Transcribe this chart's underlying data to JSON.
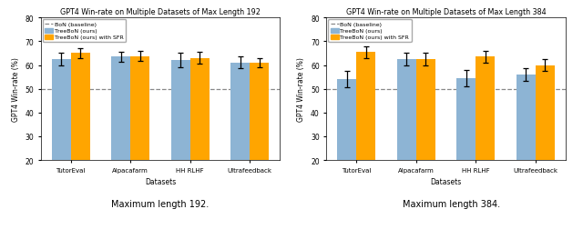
{
  "left_chart": {
    "title": "GPT4 Win-rate on Multiple Datasets of Max Length 192",
    "categories": [
      "TutorEval",
      "Alpacafarm",
      "HH RLHF",
      "Ultrafeedback"
    ],
    "treebo_values": [
      62.5,
      63.5,
      62.0,
      61.0
    ],
    "treebo_errors": [
      2.5,
      2.0,
      3.0,
      2.5
    ],
    "treebo_sfr_values": [
      65.0,
      63.8,
      63.0,
      61.0
    ],
    "treebo_sfr_errors": [
      2.0,
      2.0,
      2.5,
      2.0
    ],
    "bon_baseline": 50.0,
    "ylim": [
      20,
      80
    ],
    "yticks": [
      20,
      30,
      40,
      50,
      60,
      70,
      80
    ]
  },
  "right_chart": {
    "title": "GPT4 Win-rate on Multiple Datasets of Max Length 384",
    "categories": [
      "TutorEval",
      "Alpacafarm",
      "HH RLHF",
      "Ultrafeedback"
    ],
    "treebo_values": [
      54.0,
      62.5,
      54.5,
      56.0
    ],
    "treebo_errors": [
      3.5,
      2.5,
      3.5,
      2.5
    ],
    "treebo_sfr_values": [
      65.5,
      62.5,
      63.5,
      60.0
    ],
    "treebo_sfr_errors": [
      2.5,
      2.5,
      2.5,
      2.5
    ],
    "bon_baseline": 50.0,
    "ylim": [
      20,
      80
    ],
    "yticks": [
      20,
      30,
      40,
      50,
      60,
      70,
      80
    ]
  },
  "bar_width": 0.32,
  "color_treebo": "#8db4d4",
  "color_sfr": "#FFA500",
  "color_baseline": "#888888",
  "ylabel": "GPT4 Win-rate (%)",
  "xlabel": "Datasets",
  "caption_left": "Maximum length 192.",
  "caption_right": "Maximum length 384.",
  "legend_labels": [
    "BoN (baseline)",
    "TreeBoN (ours)",
    "TreeBoN (ours) with SFR"
  ]
}
